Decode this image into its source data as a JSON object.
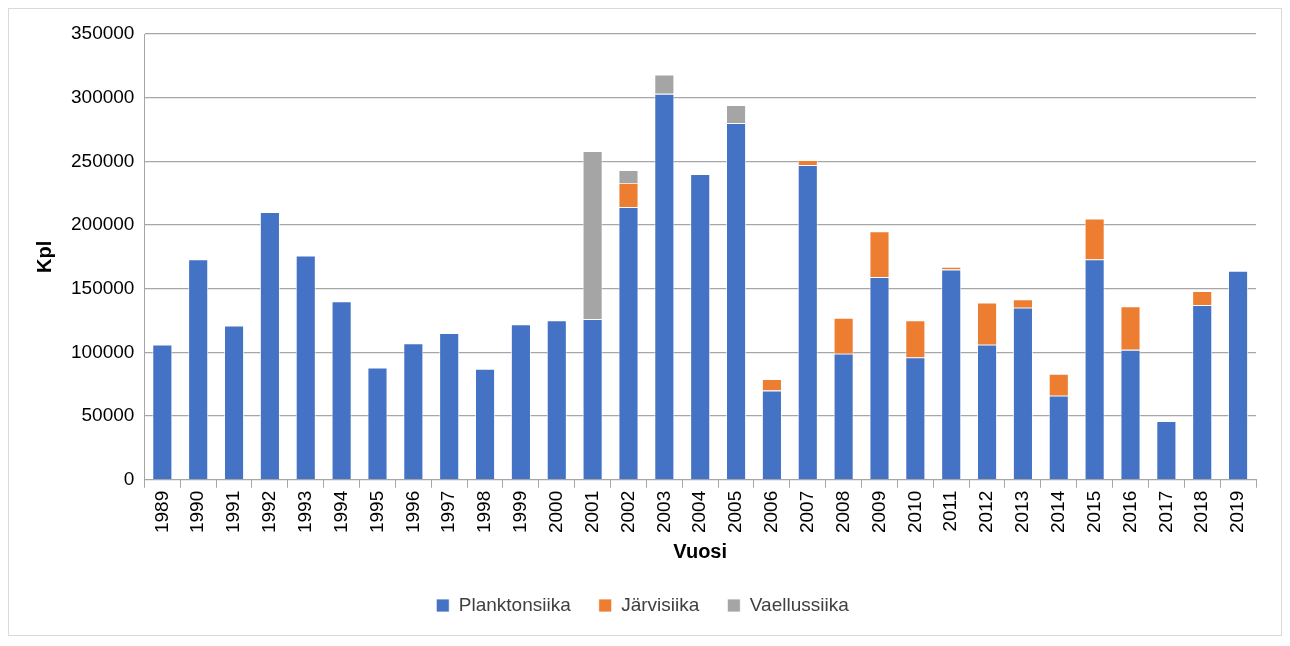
{
  "chart_data": {
    "type": "bar",
    "stacked": true,
    "xlabel": "Vuosi",
    "ylabel": "Kpl",
    "categories": [
      "1989",
      "1990",
      "1991",
      "1992",
      "1993",
      "1994",
      "1995",
      "1996",
      "1997",
      "1998",
      "1999",
      "2000",
      "2001",
      "2002",
      "2003",
      "2004",
      "2005",
      "2006",
      "2007",
      "2008",
      "2009",
      "2010",
      "2011",
      "2012",
      "2013",
      "2014",
      "2015",
      "2016",
      "2017",
      "2018",
      "2019"
    ],
    "series": [
      {
        "name": "Planktonsiika",
        "color": "#4472c4",
        "values": [
          106000,
          173000,
          121000,
          210000,
          176000,
          140000,
          88000,
          107000,
          115000,
          87000,
          122000,
          125000,
          126000,
          214000,
          303000,
          240000,
          280000,
          70000,
          247000,
          99000,
          159000,
          96000,
          165000,
          106000,
          135000,
          66000,
          173000,
          102000,
          46000,
          137000,
          164000
        ]
      },
      {
        "name": "Järvisiika",
        "color": "#ed7d31",
        "values": [
          null,
          null,
          null,
          null,
          null,
          null,
          null,
          null,
          null,
          null,
          null,
          null,
          null,
          19000,
          null,
          null,
          null,
          9000,
          4000,
          28000,
          36000,
          29000,
          2000,
          33000,
          6500,
          17000,
          32000,
          34000,
          null,
          11000,
          null
        ]
      },
      {
        "name": "Vaellussiika",
        "color": "#a5a5a5",
        "values": [
          null,
          null,
          null,
          null,
          null,
          null,
          null,
          null,
          null,
          null,
          null,
          null,
          132000,
          10000,
          15000,
          null,
          14000,
          null,
          null,
          null,
          null,
          null,
          null,
          null,
          null,
          null,
          null,
          null,
          null,
          null,
          null
        ]
      }
    ],
    "ylim": [
      0,
      350000
    ],
    "yticks": [
      0,
      50000,
      100000,
      150000,
      200000,
      250000,
      300000,
      350000
    ],
    "grid": "y",
    "legend": "bottom"
  }
}
